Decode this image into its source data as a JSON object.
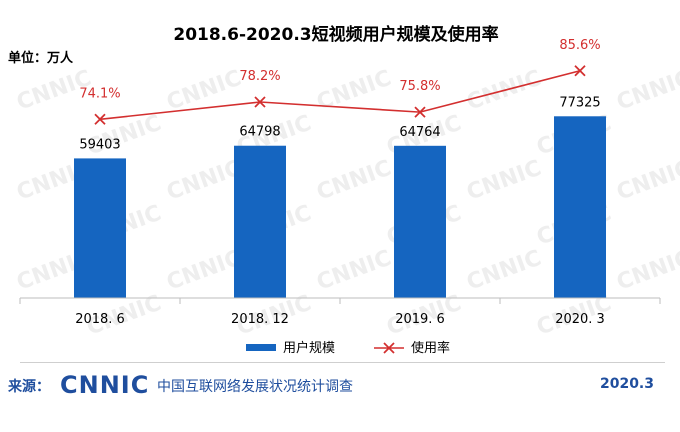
{
  "chart_data": {
    "type": "bar",
    "title": "2018.6-2020.3短视频用户规模及使用率",
    "unit_label": "单位：万人",
    "categories": [
      "2018. 6",
      "2018. 12",
      "2019. 6",
      "2020. 3"
    ],
    "series": [
      {
        "name": "用户规模",
        "type": "bar",
        "color": "#1565c0",
        "values": [
          59403,
          64798,
          64764,
          77325
        ],
        "labels": [
          "59403",
          "64798",
          "64764",
          "77325"
        ]
      },
      {
        "name": "使用率",
        "type": "line",
        "marker": "x",
        "color": "#d32f2f",
        "values": [
          74.1,
          78.2,
          75.8,
          85.6
        ],
        "labels": [
          "74.1%",
          "78.2%",
          "75.8%",
          "85.6%"
        ]
      }
    ],
    "bar_range": [
      0,
      100000
    ],
    "line_range": [
      0,
      100
    ],
    "legend_position": "bottom",
    "grid": false
  },
  "footer": {
    "source_label": "来源：",
    "logo_text": "CNNIC",
    "org_name": "中国互联网络发展状况统计调查",
    "date": "2020.3"
  },
  "colors": {
    "brand": "#1f4e9e",
    "bar": "#1565c0",
    "line": "#d32f2f"
  }
}
